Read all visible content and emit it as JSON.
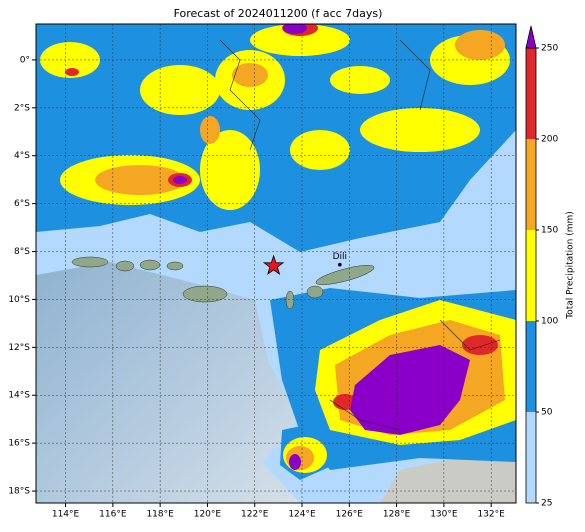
{
  "map": {
    "title": "Forecast of 2024011200 (f acc 7days)",
    "xlim": [
      112.75,
      133.05
    ],
    "ylim": [
      -18.5,
      1.5
    ],
    "xticks": [
      {
        "value": 114,
        "label": "114°E"
      },
      {
        "value": 116,
        "label": "116°E"
      },
      {
        "value": 118,
        "label": "118°E"
      },
      {
        "value": 120,
        "label": "120°E"
      },
      {
        "value": 122,
        "label": "122°E"
      },
      {
        "value": 124,
        "label": "124°E"
      },
      {
        "value": 126,
        "label": "126°E"
      },
      {
        "value": 128,
        "label": "128°E"
      },
      {
        "value": 130,
        "label": "130°E"
      },
      {
        "value": 132,
        "label": "132°E"
      }
    ],
    "yticks": [
      {
        "value": 0,
        "label": "0°"
      },
      {
        "value": -2,
        "label": "2°S"
      },
      {
        "value": -4,
        "label": "4°S"
      },
      {
        "value": -6,
        "label": "6°S"
      },
      {
        "value": -8,
        "label": "8°S"
      },
      {
        "value": -10,
        "label": "10°S"
      },
      {
        "value": -12,
        "label": "12°S"
      },
      {
        "value": -14,
        "label": "14°S"
      },
      {
        "value": -16,
        "label": "16°S"
      },
      {
        "value": -18,
        "label": "18°S"
      }
    ],
    "colorbar": {
      "label": "Total Precipitation (mm)",
      "ticks": [
        25,
        50,
        100,
        150,
        200,
        250
      ],
      "colors": [
        "#b3d9ff",
        "#1e90e0",
        "#ffff00",
        "#f5a623",
        "#e0282a"
      ],
      "extend_color": "#8b00c8"
    },
    "places": [
      {
        "name": "Dili",
        "lon": 125.6,
        "lat": -8.55
      }
    ],
    "marker": {
      "lon": 122.8,
      "lat": -8.6,
      "color": "#e8141e"
    }
  }
}
